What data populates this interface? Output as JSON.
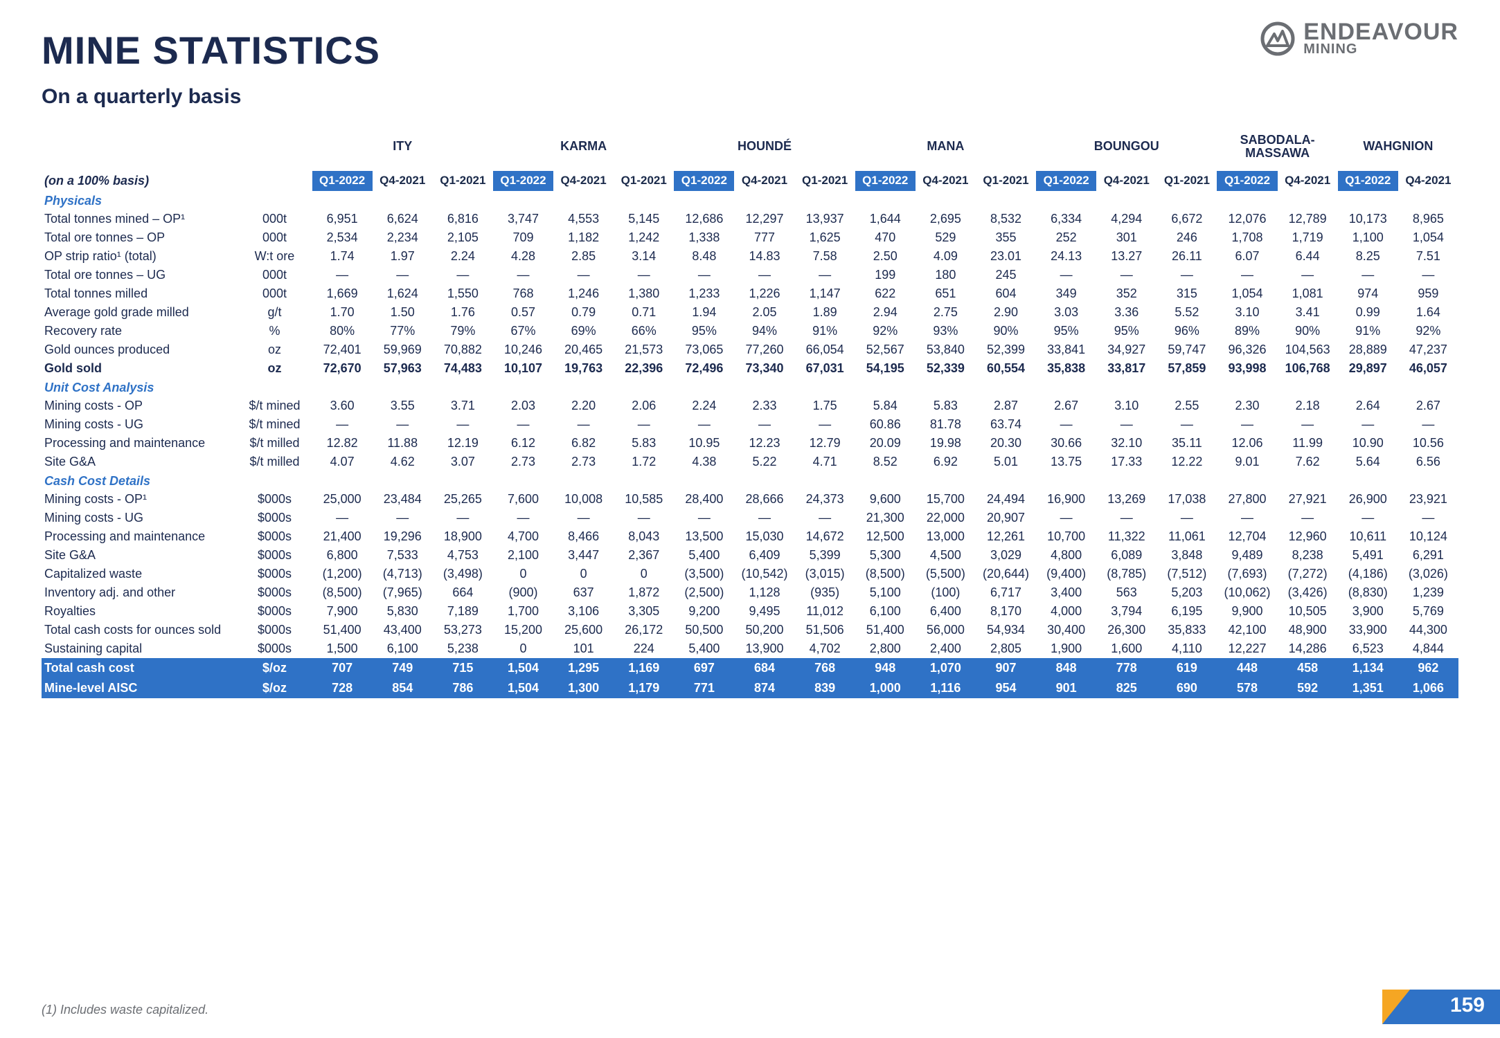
{
  "brand": {
    "line1": "ENDEAVOUR",
    "line2": "MINING"
  },
  "title": "MINE STATISTICS",
  "subtitle": "On a quarterly basis",
  "basis_label": "(on a 100% basis)",
  "footnote": "(1) Includes waste capitalized.",
  "page_number": "159",
  "colors": {
    "brand_blue": "#2f72c6",
    "brand_orange": "#f5a623",
    "text": "#1c2a4f",
    "muted": "#6b6e73",
    "bg": "#ffffff"
  },
  "mines": [
    {
      "name": "ITY",
      "periods": [
        "Q1-2022",
        "Q4-2021",
        "Q1-2021"
      ],
      "hl": [
        true,
        false,
        false
      ]
    },
    {
      "name": "KARMA",
      "periods": [
        "Q1-2022",
        "Q4-2021",
        "Q1-2021"
      ],
      "hl": [
        true,
        false,
        false
      ]
    },
    {
      "name": "HOUNDÉ",
      "periods": [
        "Q1-2022",
        "Q4-2021",
        "Q1-2021"
      ],
      "hl": [
        true,
        false,
        false
      ]
    },
    {
      "name": "MANA",
      "periods": [
        "Q1-2022",
        "Q4-2021",
        "Q1-2021"
      ],
      "hl": [
        true,
        false,
        false
      ]
    },
    {
      "name": "BOUNGOU",
      "periods": [
        "Q1-2022",
        "Q4-2021",
        "Q1-2021"
      ],
      "hl": [
        true,
        false,
        false
      ]
    },
    {
      "name": "SABODALA-\nMASSAWA",
      "periods": [
        "Q1-2022",
        "Q4-2021"
      ],
      "hl": [
        true,
        false
      ]
    },
    {
      "name": "WAHGNION",
      "periods": [
        "Q1-2022",
        "Q4-2021"
      ],
      "hl": [
        true,
        false
      ]
    }
  ],
  "sections": [
    {
      "heading": "Physicals",
      "rows": [
        {
          "label": "Total tonnes mined – OP¹",
          "unit": "000t",
          "values": [
            "6,951",
            "6,624",
            "6,816",
            "3,747",
            "4,553",
            "5,145",
            "12,686",
            "12,297",
            "13,937",
            "1,644",
            "2,695",
            "8,532",
            "6,334",
            "4,294",
            "6,672",
            "12,076",
            "12,789",
            "10,173",
            "8,965"
          ]
        },
        {
          "label": "Total ore tonnes – OP",
          "unit": "000t",
          "values": [
            "2,534",
            "2,234",
            "2,105",
            "709",
            "1,182",
            "1,242",
            "1,338",
            "777",
            "1,625",
            "470",
            "529",
            "355",
            "252",
            "301",
            "246",
            "1,708",
            "1,719",
            "1,100",
            "1,054"
          ]
        },
        {
          "label": "OP strip ratio¹ (total)",
          "unit": "W:t ore",
          "values": [
            "1.74",
            "1.97",
            "2.24",
            "4.28",
            "2.85",
            "3.14",
            "8.48",
            "14.83",
            "7.58",
            "2.50",
            "4.09",
            "23.01",
            "24.13",
            "13.27",
            "26.11",
            "6.07",
            "6.44",
            "8.25",
            "7.51"
          ]
        },
        {
          "label": "Total ore tonnes – UG",
          "unit": "000t",
          "values": [
            "—",
            "—",
            "—",
            "—",
            "—",
            "—",
            "—",
            "—",
            "—",
            "199",
            "180",
            "245",
            "—",
            "—",
            "—",
            "—",
            "—",
            "—",
            "—"
          ]
        },
        {
          "label": "Total tonnes milled",
          "unit": "000t",
          "values": [
            "1,669",
            "1,624",
            "1,550",
            "768",
            "1,246",
            "1,380",
            "1,233",
            "1,226",
            "1,147",
            "622",
            "651",
            "604",
            "349",
            "352",
            "315",
            "1,054",
            "1,081",
            "974",
            "959"
          ]
        },
        {
          "label": "Average gold grade milled",
          "unit": "g/t",
          "values": [
            "1.70",
            "1.50",
            "1.76",
            "0.57",
            "0.79",
            "0.71",
            "1.94",
            "2.05",
            "1.89",
            "2.94",
            "2.75",
            "2.90",
            "3.03",
            "3.36",
            "5.52",
            "3.10",
            "3.41",
            "0.99",
            "1.64"
          ]
        },
        {
          "label": "Recovery rate",
          "unit": "%",
          "values": [
            "80%",
            "77%",
            "79%",
            "67%",
            "69%",
            "66%",
            "95%",
            "94%",
            "91%",
            "92%",
            "93%",
            "90%",
            "95%",
            "95%",
            "96%",
            "89%",
            "90%",
            "91%",
            "92%"
          ]
        },
        {
          "label": "Gold ounces produced",
          "unit": "oz",
          "values": [
            "72,401",
            "59,969",
            "70,882",
            "10,246",
            "20,465",
            "21,573",
            "73,065",
            "77,260",
            "66,054",
            "52,567",
            "53,840",
            "52,399",
            "33,841",
            "34,927",
            "59,747",
            "96,326",
            "104,563",
            "28,889",
            "47,237"
          ]
        },
        {
          "label": "Gold sold",
          "unit": "oz",
          "bold": true,
          "values": [
            "72,670",
            "57,963",
            "74,483",
            "10,107",
            "19,763",
            "22,396",
            "72,496",
            "73,340",
            "67,031",
            "54,195",
            "52,339",
            "60,554",
            "35,838",
            "33,817",
            "57,859",
            "93,998",
            "106,768",
            "29,897",
            "46,057"
          ]
        }
      ]
    },
    {
      "heading": "Unit Cost Analysis",
      "rows": [
        {
          "label": "Mining costs - OP",
          "unit": "$/t mined",
          "values": [
            "3.60",
            "3.55",
            "3.71",
            "2.03",
            "2.20",
            "2.06",
            "2.24",
            "2.33",
            "1.75",
            "5.84",
            "5.83",
            "2.87",
            "2.67",
            "3.10",
            "2.55",
            "2.30",
            "2.18",
            "2.64",
            "2.67"
          ]
        },
        {
          "label": "Mining costs - UG",
          "unit": "$/t mined",
          "values": [
            "—",
            "—",
            "—",
            "—",
            "—",
            "—",
            "—",
            "—",
            "—",
            "60.86",
            "81.78",
            "63.74",
            "—",
            "—",
            "—",
            "—",
            "—",
            "—",
            "—"
          ]
        },
        {
          "label": "Processing and maintenance",
          "unit": "$/t milled",
          "values": [
            "12.82",
            "11.88",
            "12.19",
            "6.12",
            "6.82",
            "5.83",
            "10.95",
            "12.23",
            "12.79",
            "20.09",
            "19.98",
            "20.30",
            "30.66",
            "32.10",
            "35.11",
            "12.06",
            "11.99",
            "10.90",
            "10.56"
          ]
        },
        {
          "label": "Site G&A",
          "unit": "$/t milled",
          "values": [
            "4.07",
            "4.62",
            "3.07",
            "2.73",
            "2.73",
            "1.72",
            "4.38",
            "5.22",
            "4.71",
            "8.52",
            "6.92",
            "5.01",
            "13.75",
            "17.33",
            "12.22",
            "9.01",
            "7.62",
            "5.64",
            "6.56"
          ]
        }
      ]
    },
    {
      "heading": "Cash Cost Details",
      "rows": [
        {
          "label": "Mining costs - OP¹",
          "unit": "$000s",
          "values": [
            "25,000",
            "23,484",
            "25,265",
            "7,600",
            "10,008",
            "10,585",
            "28,400",
            "28,666",
            "24,373",
            "9,600",
            "15,700",
            "24,494",
            "16,900",
            "13,269",
            "17,038",
            "27,800",
            "27,921",
            "26,900",
            "23,921"
          ]
        },
        {
          "label": "Mining costs - UG",
          "unit": "$000s",
          "values": [
            "—",
            "—",
            "—",
            "—",
            "—",
            "—",
            "—",
            "—",
            "—",
            "21,300",
            "22,000",
            "20,907",
            "—",
            "—",
            "—",
            "—",
            "—",
            "—",
            "—"
          ]
        },
        {
          "label": "Processing and maintenance",
          "unit": "$000s",
          "values": [
            "21,400",
            "19,296",
            "18,900",
            "4,700",
            "8,466",
            "8,043",
            "13,500",
            "15,030",
            "14,672",
            "12,500",
            "13,000",
            "12,261",
            "10,700",
            "11,322",
            "11,061",
            "12,704",
            "12,960",
            "10,611",
            "10,124"
          ]
        },
        {
          "label": "Site G&A",
          "unit": "$000s",
          "values": [
            "6,800",
            "7,533",
            "4,753",
            "2,100",
            "3,447",
            "2,367",
            "5,400",
            "6,409",
            "5,399",
            "5,300",
            "4,500",
            "3,029",
            "4,800",
            "6,089",
            "3,848",
            "9,489",
            "8,238",
            "5,491",
            "6,291"
          ]
        },
        {
          "label": "Capitalized waste",
          "unit": "$000s",
          "values": [
            "(1,200)",
            "(4,713)",
            "(3,498)",
            "0",
            "0",
            "0",
            "(3,500)",
            "(10,542)",
            "(3,015)",
            "(8,500)",
            "(5,500)",
            "(20,644)",
            "(9,400)",
            "(8,785)",
            "(7,512)",
            "(7,693)",
            "(7,272)",
            "(4,186)",
            "(3,026)"
          ]
        },
        {
          "label": "Inventory adj. and other",
          "unit": "$000s",
          "values": [
            "(8,500)",
            "(7,965)",
            "664",
            "(900)",
            "637",
            "1,872",
            "(2,500)",
            "1,128",
            "(935)",
            "5,100",
            "(100)",
            "6,717",
            "3,400",
            "563",
            "5,203",
            "(10,062)",
            "(3,426)",
            "(8,830)",
            "1,239"
          ]
        },
        {
          "label": "Royalties",
          "unit": "$000s",
          "values": [
            "7,900",
            "5,830",
            "7,189",
            "1,700",
            "3,106",
            "3,305",
            "9,200",
            "9,495",
            "11,012",
            "6,100",
            "6,400",
            "8,170",
            "4,000",
            "3,794",
            "6,195",
            "9,900",
            "10,505",
            "3,900",
            "5,769"
          ]
        },
        {
          "label": "Total cash costs for ounces sold",
          "unit": "$000s",
          "values": [
            "51,400",
            "43,400",
            "53,273",
            "15,200",
            "25,600",
            "26,172",
            "50,500",
            "50,200",
            "51,506",
            "51,400",
            "56,000",
            "54,934",
            "30,400",
            "26,300",
            "35,833",
            "42,100",
            "48,900",
            "33,900",
            "44,300"
          ]
        },
        {
          "label": "Sustaining capital",
          "unit": "$000s",
          "values": [
            "1,500",
            "6,100",
            "5,238",
            "0",
            "101",
            "224",
            "5,400",
            "13,900",
            "4,702",
            "2,800",
            "2,400",
            "2,805",
            "1,900",
            "1,600",
            "4,110",
            "12,227",
            "14,286",
            "6,523",
            "4,844"
          ]
        }
      ]
    }
  ],
  "bands": [
    {
      "label": "Total cash cost",
      "unit": "$/oz",
      "values": [
        "707",
        "749",
        "715",
        "1,504",
        "1,295",
        "1,169",
        "697",
        "684",
        "768",
        "948",
        "1,070",
        "907",
        "848",
        "778",
        "619",
        "448",
        "458",
        "1,134",
        "962"
      ]
    },
    {
      "label": "Mine-level AISC",
      "unit": "$/oz",
      "values": [
        "728",
        "854",
        "786",
        "1,504",
        "1,300",
        "1,179",
        "771",
        "874",
        "839",
        "1,000",
        "1,116",
        "954",
        "901",
        "825",
        "690",
        "578",
        "592",
        "1,351",
        "1,066"
      ]
    }
  ]
}
